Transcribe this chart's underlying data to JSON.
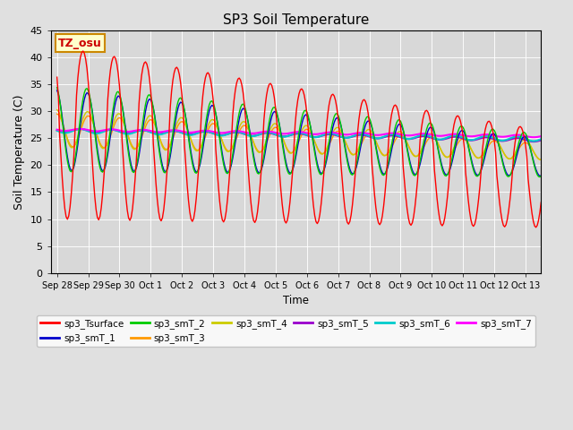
{
  "title": "SP3 Soil Temperature",
  "ylabel": "Soil Temperature (C)",
  "xlabel": "Time",
  "annotation": "TZ_osu",
  "ylim": [
    0,
    45
  ],
  "series_colors": {
    "sp3_Tsurface": "#ff0000",
    "sp3_smT_1": "#0000cc",
    "sp3_smT_2": "#00cc00",
    "sp3_smT_3": "#ff9900",
    "sp3_smT_4": "#cccc00",
    "sp3_smT_5": "#9900cc",
    "sp3_smT_6": "#00cccc",
    "sp3_smT_7": "#ff00ff"
  },
  "x_tick_labels": [
    "Sep 28",
    "Sep 29",
    "Sep 30",
    "Oct 1",
    "Oct 2",
    "Oct 3",
    "Oct 4",
    "Oct 5",
    "Oct 6",
    "Oct 7",
    "Oct 8",
    "Oct 9",
    "Oct 10",
    "Oct 11",
    "Oct 12",
    "Oct 13"
  ],
  "x_tick_positions": [
    0,
    1,
    2,
    3,
    4,
    5,
    6,
    7,
    8,
    9,
    10,
    11,
    12,
    13,
    14,
    15
  ],
  "fig_bg": "#e0e0e0",
  "ax_bg": "#d8d8d8"
}
